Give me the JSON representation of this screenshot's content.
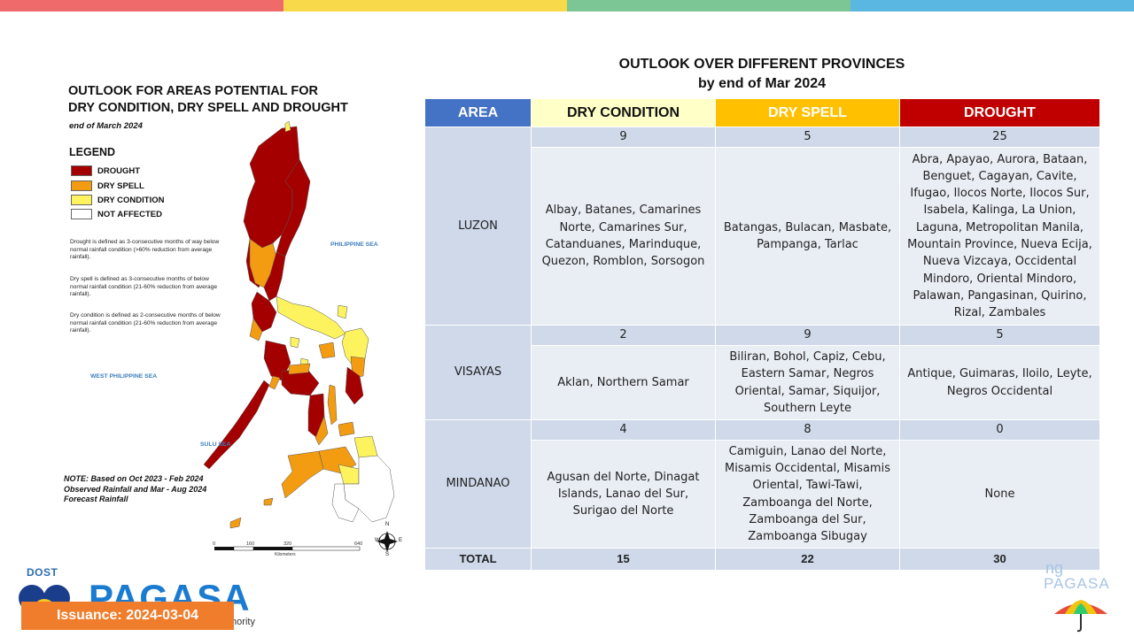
{
  "colors": {
    "stripes": [
      "#ef6b6b",
      "#f7d94a",
      "#7cc594",
      "#5ab7e2"
    ],
    "area_header": "#4472c4",
    "dry_condition": "#ffffc8",
    "dry_spell": "#ffc000",
    "drought": "#c00000",
    "issuance_bg": "#ef7d2b"
  },
  "map": {
    "title_line1": "OUTLOOK FOR AREAS POTENTIAL FOR",
    "title_line2": "DRY CONDITION, DRY SPELL AND DROUGHT",
    "date": "end of March 2024",
    "legend_title": "LEGEND",
    "legend": [
      {
        "label": "DROUGHT",
        "color": "#a40000"
      },
      {
        "label": "DRY SPELL",
        "color": "#f39c12"
      },
      {
        "label": "DRY CONDITION",
        "color": "#fdf35f"
      },
      {
        "label": "NOT AFFECTED",
        "color": "#ffffff"
      }
    ],
    "definitions": [
      "Drought is defined as 3-consecutive months of way below normal rainfall condition (>60% reduction from average rainfall).",
      "Dry spell is defined as 3-consecutive months of below normal rainfall condition (21-60% reduction from average rainfall).",
      "Dry condition is defined as 2-consecutive months of below normal rainfall condition (21-60% reduction from average rainfall)."
    ],
    "seas": {
      "philippine_sea": "PHILIPPINE SEA",
      "west_philippine_sea": "WEST PHILIPPINE SEA",
      "sulu_sea": "SULU SEA"
    },
    "note_line1": "NOTE: Based on Oct 2023 - Feb 2024",
    "note_line2": "Observed Rainfall and Mar - Aug 2024",
    "note_line3": "Forecast Rainfall",
    "scale_ticks": [
      "0",
      "160",
      "320",
      "640"
    ],
    "scale_unit": "Kilometers",
    "compass": {
      "n": "N",
      "e": "E",
      "s": "S",
      "w": "W"
    }
  },
  "table": {
    "title_line1": "OUTLOOK OVER DIFFERENT PROVINCES",
    "title_line2": "by end of Mar 2024",
    "headers": {
      "area": "AREA",
      "dry_condition": "DRY CONDITION",
      "dry_spell": "DRY SPELL",
      "drought": "DROUGHT"
    },
    "rows": [
      {
        "area": "LUZON",
        "counts": {
          "dry_condition": "9",
          "dry_spell": "5",
          "drought": "25"
        },
        "provinces": {
          "dry_condition": "Albay, Batanes, Camarines Norte, Camarines Sur, Catanduanes, Marinduque, Quezon, Romblon, Sorsogon",
          "dry_spell": "Batangas, Bulacan, Masbate, Pampanga, Tarlac",
          "drought": "Abra, Apayao, Aurora, Bataan, Benguet, Cagayan, Cavite, Ifugao, Ilocos Norte, Ilocos Sur, Isabela, Kalinga, La Union, Laguna, Metropolitan Manila, Mountain Province, Nueva Ecija, Nueva Vizcaya, Occidental Mindoro, Oriental Mindoro, Palawan, Pangasinan, Quirino, Rizal, Zambales"
        }
      },
      {
        "area": "VISAYAS",
        "counts": {
          "dry_condition": "2",
          "dry_spell": "9",
          "drought": "5"
        },
        "provinces": {
          "dry_condition": "Aklan, Northern Samar",
          "dry_spell": "Biliran, Bohol, Capiz, Cebu, Eastern Samar, Negros Oriental, Samar, Siquijor, Southern Leyte",
          "drought": "Antique, Guimaras, Iloilo, Leyte, Negros Occidental"
        }
      },
      {
        "area": "MINDANAO",
        "counts": {
          "dry_condition": "4",
          "dry_spell": "8",
          "drought": "0"
        },
        "provinces": {
          "dry_condition": "Agusan del Norte, Dinagat Islands, Lanao del Sur, Surigao del Norte",
          "dry_spell": "Camiguin, Lanao del Norte, Misamis Occidental, Misamis Oriental, Tawi-Tawi, Zamboanga del Norte, Zamboanga del Sur, Zamboanga Sibugay",
          "drought": "None"
        }
      }
    ],
    "total": {
      "label": "TOTAL",
      "dry_condition": "15",
      "dry_spell": "22",
      "drought": "30"
    }
  },
  "footer": {
    "dost": "DOST",
    "pagasa": "PAGASA",
    "authority": "thority",
    "issuance": "Issuance: 2024-03-04",
    "right_brand_line1": "ng",
    "right_brand_line2": "PAGASA"
  }
}
